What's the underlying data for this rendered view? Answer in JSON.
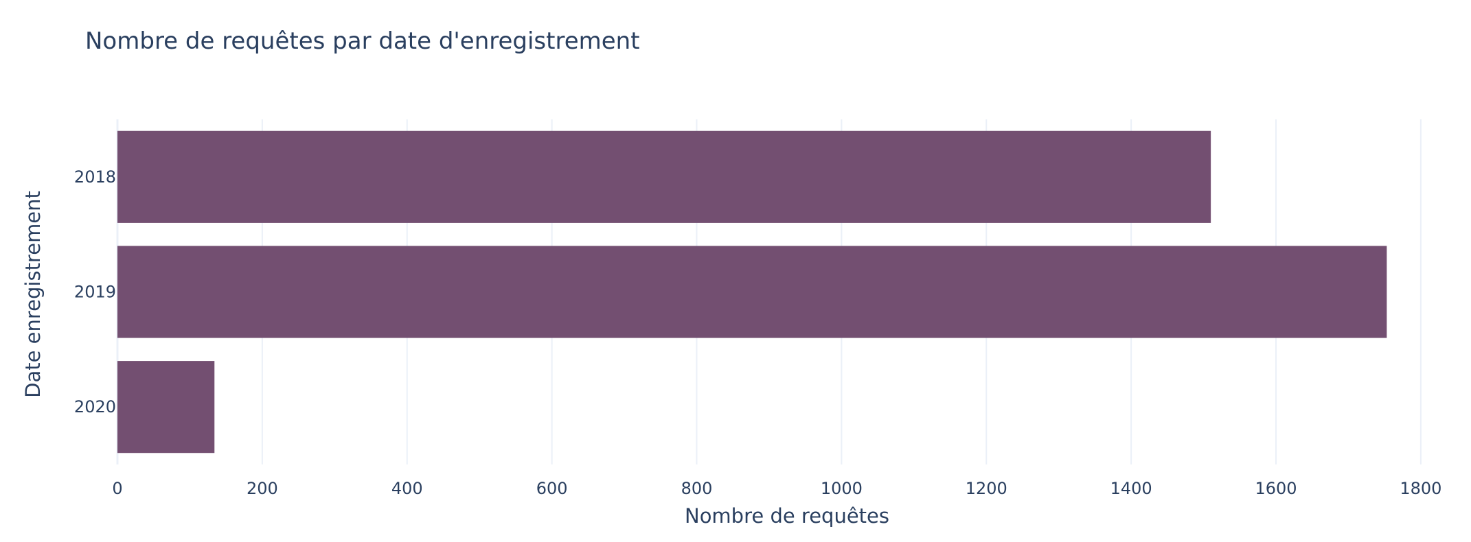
{
  "chart_data": {
    "type": "bar",
    "orientation": "horizontal",
    "title": "Nombre de requêtes par date d'enregistrement",
    "xlabel": "Nombre de requêtes",
    "ylabel": "Date enregistrement",
    "categories": [
      "2018",
      "2019",
      "2020"
    ],
    "values": [
      1510,
      1753,
      134
    ],
    "xlim": [
      0,
      1820
    ],
    "xticks": [
      0,
      200,
      400,
      600,
      800,
      1000,
      1200,
      1400,
      1600,
      1800
    ],
    "grid": true,
    "bar_color": "#734f71"
  }
}
